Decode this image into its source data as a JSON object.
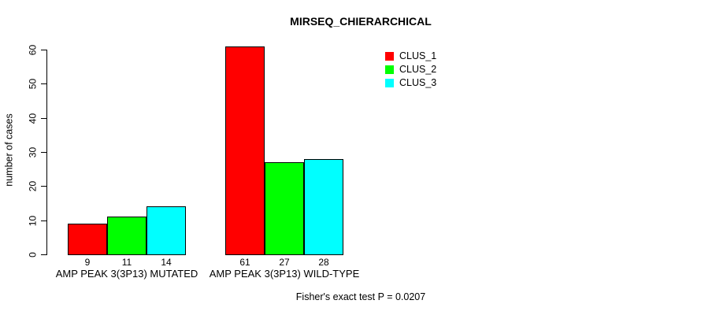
{
  "chart_data": {
    "type": "bar",
    "title": "MIRSEQ_CHIERARCHICAL",
    "ylabel": "number of cases",
    "xlabel": "",
    "footer": "Fisher's exact test P = 0.0207",
    "categories": [
      "AMP PEAK 3(3P13) MUTATED",
      "AMP PEAK 3(3P13) WILD-TYPE"
    ],
    "series": [
      {
        "name": "CLUS_1",
        "color": "#ff0000",
        "values": [
          9,
          61
        ]
      },
      {
        "name": "CLUS_2",
        "color": "#00ff00",
        "values": [
          11,
          27
        ]
      },
      {
        "name": "CLUS_3",
        "color": "#00ffff",
        "values": [
          14,
          28
        ]
      }
    ],
    "bar_value_labels": [
      [
        9,
        11,
        14
      ],
      [
        61,
        27,
        28
      ]
    ],
    "yticks": [
      0,
      10,
      20,
      30,
      40,
      50,
      60
    ],
    "ylim": [
      0,
      60
    ],
    "legend_position": "top-right",
    "grid": false,
    "colors": {
      "clus_1": "#ff0000",
      "clus_2": "#00ff00",
      "clus_3": "#00ffff",
      "axis": "#000000",
      "background": "#ffffff"
    }
  }
}
